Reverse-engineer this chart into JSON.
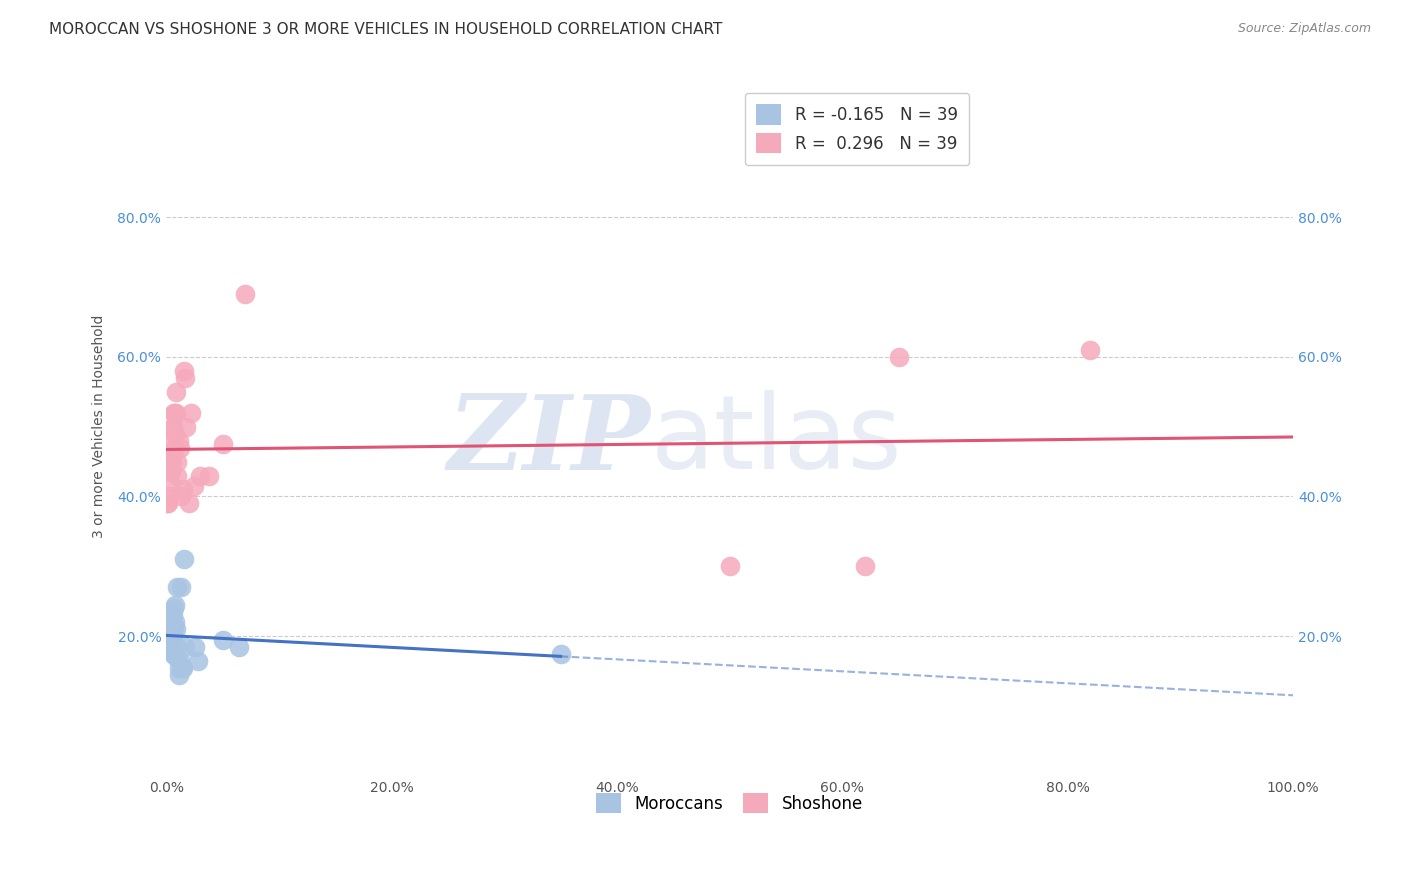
{
  "title": "MOROCCAN VS SHOSHONE 3 OR MORE VEHICLES IN HOUSEHOLD CORRELATION CHART",
  "source": "Source: ZipAtlas.com",
  "ylabel": "3 or more Vehicles in Household",
  "xlim": [
    0,
    100
  ],
  "ylim": [
    0,
    100
  ],
  "x_tick_labels": [
    "0.0%",
    "20.0%",
    "40.0%",
    "60.0%",
    "80.0%",
    "100.0%"
  ],
  "x_tick_vals": [
    0,
    20,
    40,
    60,
    80,
    100
  ],
  "y_tick_labels": [
    "20.0%",
    "40.0%",
    "60.0%",
    "80.0%"
  ],
  "y_tick_vals": [
    20,
    40,
    60,
    80
  ],
  "legend_labels": [
    "Moroccans",
    "Shoshone"
  ],
  "moroccan_color": "#a8c4e2",
  "shoshone_color": "#f5aabb",
  "moroccan_line_color": "#4472c4",
  "shoshone_line_color": "#e05575",
  "background_color": "#ffffff",
  "grid_color": "#cccccc",
  "watermark_color": "#ccd8eb",
  "R_moroccan": -0.165,
  "N_moroccan": 39,
  "R_shoshone": 0.296,
  "N_shoshone": 39,
  "moroccan_x": [
    0.2,
    0.3,
    0.3,
    0.3,
    0.4,
    0.4,
    0.4,
    0.4,
    0.5,
    0.5,
    0.5,
    0.5,
    0.5,
    0.6,
    0.6,
    0.6,
    0.6,
    0.7,
    0.7,
    0.7,
    0.8,
    0.8,
    0.9,
    0.9,
    1.0,
    1.0,
    1.1,
    1.1,
    1.2,
    1.3,
    1.4,
    1.5,
    1.6,
    1.7,
    2.6,
    2.8,
    5.0,
    6.5,
    35.0
  ],
  "moroccan_y": [
    19.5,
    20.0,
    19.5,
    18.5,
    21.0,
    20.5,
    19.5,
    19.0,
    22.0,
    21.0,
    20.0,
    19.5,
    18.5,
    23.0,
    21.0,
    20.0,
    17.5,
    24.0,
    21.5,
    17.5,
    24.5,
    22.0,
    21.0,
    17.0,
    27.0,
    18.5,
    15.5,
    14.5,
    16.5,
    27.0,
    15.5,
    15.5,
    31.0,
    18.5,
    18.5,
    16.5,
    19.5,
    18.5,
    17.5
  ],
  "shoshone_x": [
    0.1,
    0.2,
    0.3,
    0.3,
    0.4,
    0.4,
    0.4,
    0.5,
    0.5,
    0.5,
    0.6,
    0.6,
    0.6,
    0.7,
    0.7,
    0.8,
    0.8,
    0.9,
    0.9,
    1.0,
    1.0,
    1.1,
    1.2,
    1.3,
    1.5,
    1.6,
    1.7,
    1.8,
    2.0,
    2.2,
    2.5,
    3.0,
    3.8,
    5.0,
    7.0,
    50.0,
    62.0,
    65.0,
    82.0
  ],
  "shoshone_y": [
    39.0,
    39.0,
    40.0,
    42.0,
    44.0,
    44.0,
    43.5,
    46.0,
    45.5,
    45.0,
    48.0,
    50.0,
    50.0,
    52.0,
    52.0,
    49.0,
    47.0,
    55.0,
    52.0,
    45.0,
    43.0,
    48.0,
    47.0,
    40.0,
    41.0,
    58.0,
    57.0,
    50.0,
    39.0,
    52.0,
    41.5,
    43.0,
    43.0,
    47.5,
    69.0,
    30.0,
    30.0,
    60.0,
    61.0
  ],
  "moroccan_solid_end": 35.0,
  "title_fontsize": 11,
  "axis_label_fontsize": 10,
  "tick_fontsize": 10,
  "legend_fontsize": 12,
  "source_fontsize": 9
}
